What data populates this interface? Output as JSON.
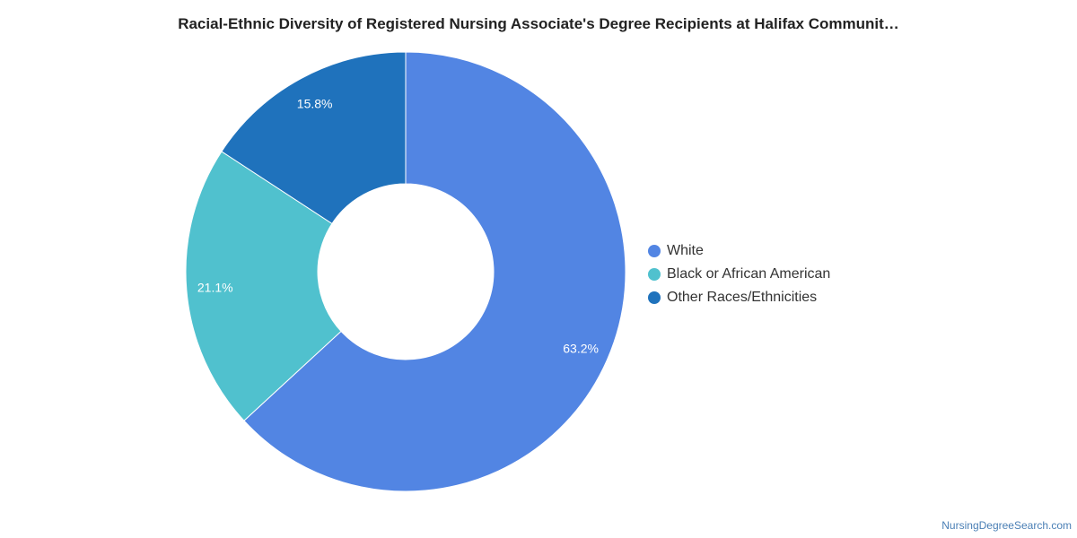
{
  "chart_data": {
    "type": "pie",
    "title": "Racial-Ethnic Diversity of Registered Nursing Associate's Degree Recipients at Halifax Communit…",
    "donut": true,
    "categories": [
      "White",
      "Black or African American",
      "Other Races/Ethnicities"
    ],
    "values": [
      63.2,
      21.1,
      15.8
    ],
    "value_labels": [
      "63.2%",
      "21.1%",
      "15.8%"
    ],
    "colors": [
      "#5285e3",
      "#50c1ce",
      "#1f72bc"
    ],
    "legend_position": "right"
  },
  "footer": {
    "source": "NursingDegreeSearch.com"
  }
}
